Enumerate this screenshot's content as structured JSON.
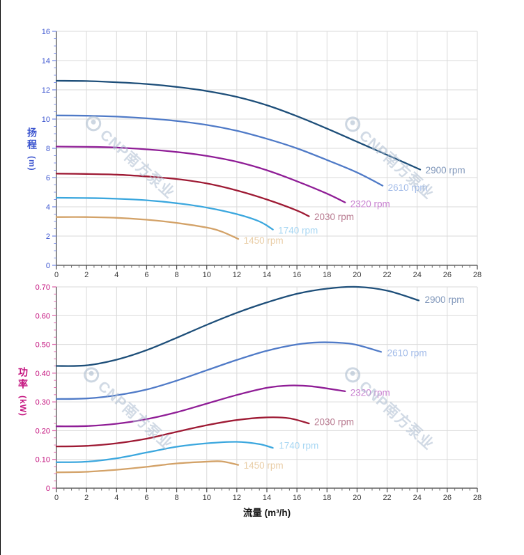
{
  "watermark": {
    "text": "CNP南方泵业"
  },
  "chart_data": {
    "type": "line",
    "x_axis": {
      "label": "流量 (m³/h)",
      "min": 0,
      "max": 28,
      "major_step": 2,
      "minor_step": 0.5
    },
    "grid": "on",
    "legend_position": "end-of-curve",
    "charts": [
      {
        "id": "head",
        "y_axis_title": "扬程",
        "y_axis_unit": "(m)",
        "accent": "#3c55cf",
        "tick_color": "#7b8fe8",
        "y_axis": {
          "min": 0,
          "max": 16,
          "major_step": 2,
          "minor_step": 0.5,
          "decimals": 0
        },
        "series": [
          {
            "label": "2900 rpm",
            "color": "#1d4e79",
            "label_color": "#8097ba",
            "label_at": [
              24.55,
              6.5
            ],
            "points": [
              [
                0,
                12.62
              ],
              [
                2,
                12.6
              ],
              [
                4,
                12.52
              ],
              [
                6,
                12.4
              ],
              [
                8,
                12.2
              ],
              [
                10,
                11.92
              ],
              [
                12,
                11.52
              ],
              [
                14,
                10.95
              ],
              [
                16,
                10.2
              ],
              [
                18,
                9.35
              ],
              [
                20,
                8.45
              ],
              [
                22,
                7.55
              ],
              [
                24.2,
                6.55
              ]
            ]
          },
          {
            "label": "2610 rpm",
            "color": "#4f7ac7",
            "label_color": "#a3bce9",
            "label_at": [
              22.05,
              5.3
            ],
            "points": [
              [
                0,
                10.25
              ],
              [
                2,
                10.23
              ],
              [
                4,
                10.17
              ],
              [
                6,
                10.05
              ],
              [
                8,
                9.87
              ],
              [
                10,
                9.6
              ],
              [
                12,
                9.2
              ],
              [
                14,
                8.65
              ],
              [
                16,
                8.0
              ],
              [
                18,
                7.2
              ],
              [
                20,
                6.35
              ],
              [
                21.7,
                5.45
              ]
            ]
          },
          {
            "label": "2320 rpm",
            "color": "#8f1d96",
            "label_color": "#c981d1",
            "label_at": [
              19.55,
              4.2
            ],
            "points": [
              [
                0,
                8.12
              ],
              [
                2,
                8.1
              ],
              [
                4,
                8.05
              ],
              [
                6,
                7.93
              ],
              [
                8,
                7.75
              ],
              [
                10,
                7.48
              ],
              [
                12,
                7.08
              ],
              [
                14,
                6.5
              ],
              [
                16,
                5.75
              ],
              [
                18,
                4.9
              ],
              [
                19.2,
                4.3
              ]
            ]
          },
          {
            "label": "2030 rpm",
            "color": "#9e1a34",
            "label_color": "#b7798f",
            "label_at": [
              17.15,
              3.3
            ],
            "points": [
              [
                0,
                6.27
              ],
              [
                2,
                6.25
              ],
              [
                4,
                6.2
              ],
              [
                6,
                6.08
              ],
              [
                8,
                5.9
              ],
              [
                10,
                5.6
              ],
              [
                12,
                5.12
              ],
              [
                14,
                4.5
              ],
              [
                16,
                3.75
              ],
              [
                16.8,
                3.35
              ]
            ]
          },
          {
            "label": "1740 rpm",
            "color": "#3ba7de",
            "label_color": "#a8d7f3",
            "label_at": [
              14.75,
              2.38
            ],
            "points": [
              [
                0,
                4.62
              ],
              [
                2,
                4.6
              ],
              [
                4,
                4.55
              ],
              [
                6,
                4.45
              ],
              [
                8,
                4.25
              ],
              [
                10,
                3.95
              ],
              [
                12,
                3.5
              ],
              [
                13.5,
                3.0
              ],
              [
                14.4,
                2.45
              ]
            ]
          },
          {
            "label": "1450 rpm",
            "color": "#d3a268",
            "label_color": "#e9cda6",
            "label_at": [
              12.45,
              1.68
            ],
            "points": [
              [
                0,
                3.3
              ],
              [
                2,
                3.3
              ],
              [
                4,
                3.25
              ],
              [
                6,
                3.12
              ],
              [
                8,
                2.9
              ],
              [
                10,
                2.58
              ],
              [
                11,
                2.3
              ],
              [
                12.1,
                1.8
              ]
            ]
          }
        ]
      },
      {
        "id": "power",
        "y_axis_title": "功率",
        "y_axis_unit": "(kW)",
        "accent": "#c4127e",
        "tick_color": "#e06aae",
        "y_axis": {
          "min": 0,
          "max": 0.7,
          "major_step": 0.1,
          "minor_step": 0.025,
          "decimals": 2
        },
        "series": [
          {
            "label": "2900 rpm",
            "color": "#1d4e79",
            "label_color": "#8097ba",
            "label_at": [
              24.5,
              0.655
            ],
            "points": [
              [
                0,
                0.425
              ],
              [
                2,
                0.427
              ],
              [
                4,
                0.447
              ],
              [
                6,
                0.48
              ],
              [
                8,
                0.523
              ],
              [
                10,
                0.568
              ],
              [
                12,
                0.61
              ],
              [
                14,
                0.646
              ],
              [
                16,
                0.676
              ],
              [
                18,
                0.694
              ],
              [
                20,
                0.7
              ],
              [
                22,
                0.687
              ],
              [
                24.1,
                0.653
              ]
            ]
          },
          {
            "label": "2610 rpm",
            "color": "#4f7ac7",
            "label_color": "#a3bce9",
            "label_at": [
              22.0,
              0.47
            ],
            "points": [
              [
                0,
                0.31
              ],
              [
                2,
                0.312
              ],
              [
                4,
                0.323
              ],
              [
                6,
                0.343
              ],
              [
                8,
                0.374
              ],
              [
                10,
                0.41
              ],
              [
                12,
                0.446
              ],
              [
                14,
                0.478
              ],
              [
                16,
                0.5
              ],
              [
                17.5,
                0.507
              ],
              [
                19,
                0.505
              ],
              [
                20,
                0.498
              ],
              [
                21.6,
                0.474
              ]
            ]
          },
          {
            "label": "2320 rpm",
            "color": "#8f1d96",
            "label_color": "#c981d1",
            "label_at": [
              19.55,
              0.332
            ],
            "points": [
              [
                0,
                0.215
              ],
              [
                2,
                0.216
              ],
              [
                4,
                0.224
              ],
              [
                6,
                0.24
              ],
              [
                8,
                0.264
              ],
              [
                10,
                0.294
              ],
              [
                12,
                0.324
              ],
              [
                14,
                0.349
              ],
              [
                15.5,
                0.357
              ],
              [
                17,
                0.354
              ],
              [
                19.2,
                0.337
              ]
            ]
          },
          {
            "label": "2030 rpm",
            "color": "#9e1a34",
            "label_color": "#b7798f",
            "label_at": [
              17.15,
              0.23
            ],
            "points": [
              [
                0,
                0.145
              ],
              [
                2,
                0.147
              ],
              [
                4,
                0.156
              ],
              [
                6,
                0.172
              ],
              [
                8,
                0.196
              ],
              [
                10,
                0.219
              ],
              [
                12,
                0.237
              ],
              [
                14,
                0.246
              ],
              [
                15.5,
                0.243
              ],
              [
                16.8,
                0.225
              ]
            ]
          },
          {
            "label": "1740 rpm",
            "color": "#3ba7de",
            "label_color": "#a8d7f3",
            "label_at": [
              14.8,
              0.148
            ],
            "points": [
              [
                0,
                0.09
              ],
              [
                2,
                0.092
              ],
              [
                4,
                0.104
              ],
              [
                6,
                0.124
              ],
              [
                8,
                0.144
              ],
              [
                10,
                0.156
              ],
              [
                12,
                0.161
              ],
              [
                13.5,
                0.153
              ],
              [
                14.4,
                0.14
              ]
            ]
          },
          {
            "label": "1450 rpm",
            "color": "#d3a268",
            "label_color": "#e9cda6",
            "label_at": [
              12.45,
              0.079
            ],
            "points": [
              [
                0,
                0.055
              ],
              [
                2,
                0.057
              ],
              [
                4,
                0.064
              ],
              [
                6,
                0.074
              ],
              [
                8,
                0.086
              ],
              [
                10,
                0.092
              ],
              [
                11,
                0.093
              ],
              [
                12.1,
                0.081
              ]
            ]
          }
        ]
      }
    ]
  }
}
